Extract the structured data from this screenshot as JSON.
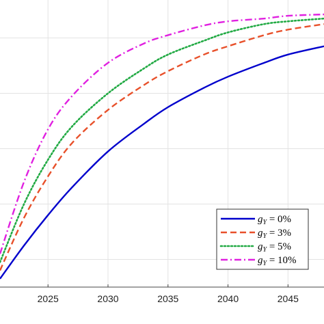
{
  "chart_data": {
    "type": "line",
    "title": "",
    "xlabel": "",
    "ylabel": "",
    "xlim": [
      2021,
      2048
    ],
    "ylim": [
      0,
      1
    ],
    "grid": true,
    "legend_position": "bottom-right",
    "x_ticks": [
      2025,
      2030,
      2035,
      2040,
      2045
    ],
    "x_tick_labels": [
      "2025",
      "2030",
      "2035",
      "2040",
      "2045"
    ],
    "y_ticks": [
      0.1,
      0.3,
      0.5,
      0.7,
      0.9
    ],
    "series": [
      {
        "name": "g_Y = 0%",
        "legend": {
          "var": "g",
          "sub": "Y",
          "value": "= 0%"
        },
        "color": "#0000cc",
        "dash": "solid",
        "x": [
          2021,
          2023,
          2025,
          2027,
          2030,
          2033,
          2035,
          2038,
          2040,
          2043,
          2045,
          2048
        ],
        "y": [
          0.03,
          0.15,
          0.26,
          0.36,
          0.49,
          0.59,
          0.65,
          0.72,
          0.76,
          0.81,
          0.84,
          0.87
        ]
      },
      {
        "name": "g_Y = 3%",
        "legend": {
          "var": "g",
          "sub": "Y",
          "value": "= 3%"
        },
        "color": "#e8502a",
        "dash": "dashed",
        "x": [
          2021,
          2023,
          2025,
          2027,
          2030,
          2033,
          2035,
          2038,
          2040,
          2043,
          2045,
          2048
        ],
        "y": [
          0.06,
          0.25,
          0.4,
          0.52,
          0.64,
          0.73,
          0.78,
          0.84,
          0.87,
          0.91,
          0.93,
          0.95
        ]
      },
      {
        "name": "g_Y = 5%",
        "legend": {
          "var": "g",
          "sub": "Y",
          "value": "= 5%"
        },
        "color": "#22aa44",
        "dash": "dotted",
        "x": [
          2021,
          2023,
          2025,
          2027,
          2030,
          2033,
          2035,
          2038,
          2040,
          2043,
          2045,
          2048
        ],
        "y": [
          0.09,
          0.3,
          0.46,
          0.58,
          0.7,
          0.79,
          0.84,
          0.89,
          0.92,
          0.95,
          0.96,
          0.97
        ]
      },
      {
        "name": "g_Y = 10%",
        "legend": {
          "var": "g",
          "sub": "Y",
          "value": "= 10%"
        },
        "color": "#e020e0",
        "dash": "dashdot",
        "x": [
          2021,
          2023,
          2025,
          2027,
          2030,
          2033,
          2035,
          2038,
          2040,
          2043,
          2045,
          2048
        ],
        "y": [
          0.12,
          0.38,
          0.57,
          0.69,
          0.81,
          0.88,
          0.91,
          0.945,
          0.96,
          0.97,
          0.98,
          0.985
        ]
      }
    ]
  }
}
